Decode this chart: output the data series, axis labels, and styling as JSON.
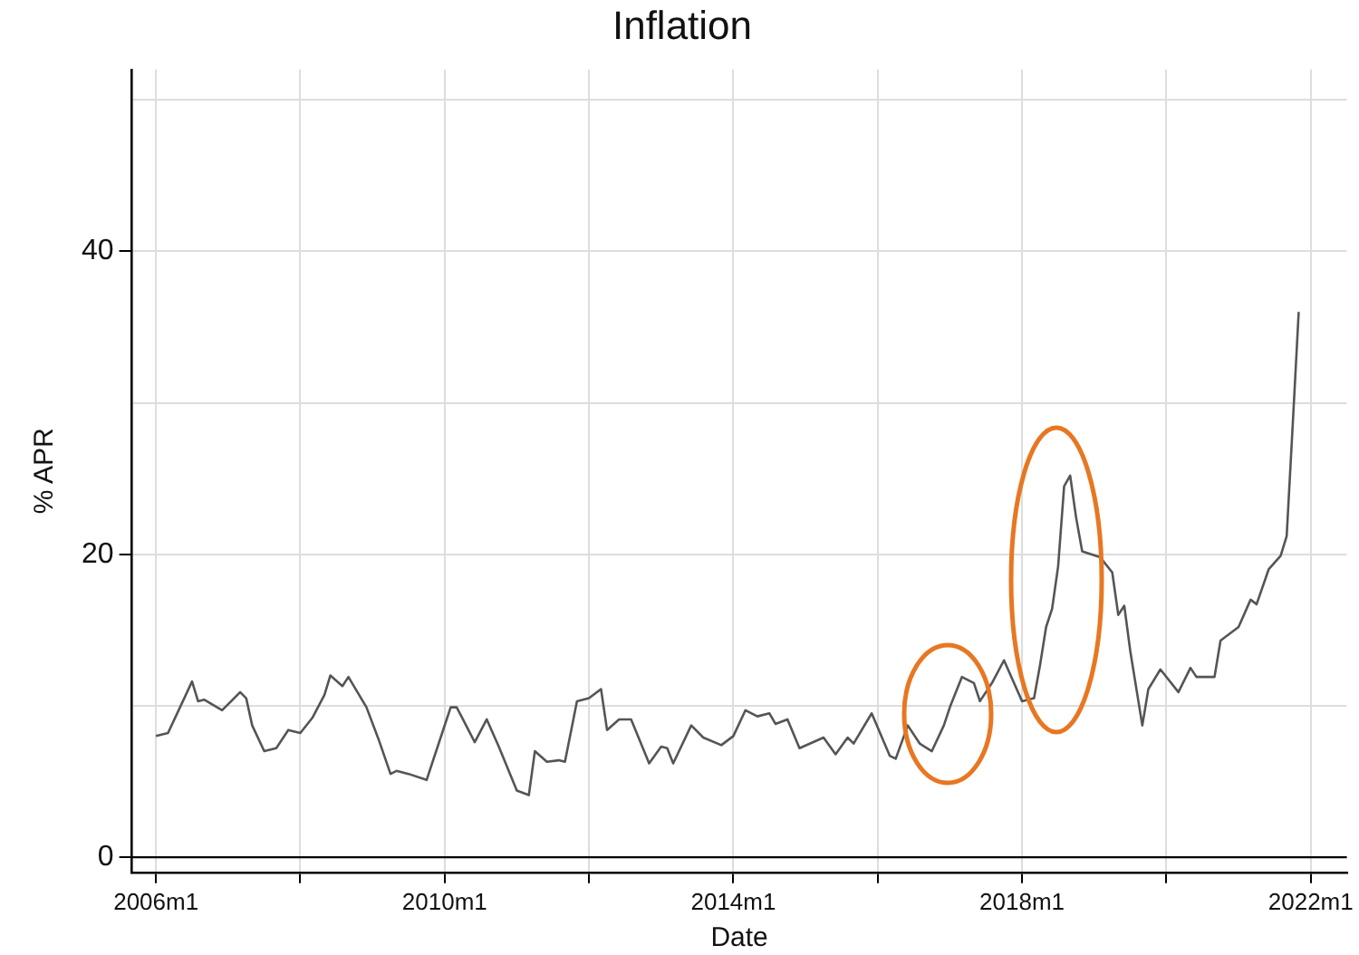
{
  "chart_data": {
    "type": "line",
    "title": "Inflation",
    "xlabel": "Date",
    "ylabel": "% APR",
    "xlim": [
      "2005-09",
      "2022-07"
    ],
    "ylim": [
      -1,
      52
    ],
    "xticks": [
      {
        "value": "2006-01",
        "label": "2006m1"
      },
      {
        "value": "2008-01",
        "label": null
      },
      {
        "value": "2010-01",
        "label": "2010m1"
      },
      {
        "value": "2012-01",
        "label": null
      },
      {
        "value": "2014-01",
        "label": "2014m1"
      },
      {
        "value": "2016-01",
        "label": null
      },
      {
        "value": "2018-01",
        "label": "2018m1"
      },
      {
        "value": "2020-01",
        "label": null
      },
      {
        "value": "2022-01",
        "label": "2022m1"
      }
    ],
    "yticks": [
      0,
      {
        "value": 10,
        "label": null
      },
      20,
      {
        "value": 30,
        "label": null
      },
      40,
      {
        "value": 50,
        "label": null
      }
    ],
    "grid": true,
    "legend": false,
    "marker": "none",
    "line_style": "solid",
    "ref_lines": [
      {
        "axis": "y",
        "value": 0,
        "label": null,
        "color": "#000000"
      }
    ],
    "x": [
      "2006-01",
      "2006-03",
      "2006-05",
      "2006-07",
      "2006-08",
      "2006-09",
      "2006-12",
      "2007-03",
      "2007-04",
      "2007-05",
      "2007-07",
      "2007-09",
      "2007-11",
      "2008-01",
      "2008-03",
      "2008-05",
      "2008-06",
      "2008-08",
      "2008-09",
      "2008-12",
      "2009-02",
      "2009-04",
      "2009-05",
      "2009-07",
      "2009-10",
      "2009-11",
      "2010-02",
      "2010-03",
      "2010-06",
      "2010-08",
      "2010-10",
      "2011-01",
      "2011-03",
      "2011-04",
      "2011-06",
      "2011-08",
      "2011-09",
      "2011-11",
      "2012-01",
      "2012-03",
      "2012-04",
      "2012-06",
      "2012-08",
      "2012-11",
      "2013-01",
      "2013-02",
      "2013-03",
      "2013-06",
      "2013-08",
      "2013-11",
      "2014-01",
      "2014-03",
      "2014-05",
      "2014-07",
      "2014-08",
      "2014-10",
      "2014-12",
      "2015-04",
      "2015-06",
      "2015-08",
      "2015-09",
      "2015-12",
      "2016-03",
      "2016-04",
      "2016-06",
      "2016-08",
      "2016-10",
      "2016-12",
      "2017-01",
      "2017-03",
      "2017-05",
      "2017-06",
      "2017-08",
      "2017-10",
      "2018-01",
      "2018-03",
      "2018-04",
      "2018-05",
      "2018-06",
      "2018-07",
      "2018-08",
      "2018-09",
      "2018-10",
      "2018-11",
      "2019-02",
      "2019-04",
      "2019-05",
      "2019-06",
      "2019-07",
      "2019-09",
      "2019-10",
      "2019-12",
      "2020-03",
      "2020-05",
      "2020-06",
      "2020-09",
      "2020-10",
      "2021-01",
      "2021-03",
      "2021-04",
      "2021-06",
      "2021-08",
      "2021-09",
      "2021-10",
      "2021-11"
    ],
    "series": [
      {
        "color": "#555555",
        "values": [
          8.0,
          8.2,
          9.9,
          11.6,
          10.3,
          10.4,
          9.7,
          10.9,
          10.5,
          8.7,
          7.0,
          7.2,
          8.4,
          8.2,
          9.2,
          10.7,
          12.0,
          11.3,
          11.9,
          9.9,
          7.8,
          5.5,
          5.7,
          5.5,
          5.1,
          6.3,
          9.9,
          9.9,
          7.6,
          9.1,
          7.3,
          4.4,
          4.1,
          7.0,
          6.3,
          6.4,
          6.3,
          10.3,
          10.5,
          11.1,
          8.4,
          9.1,
          9.1,
          6.2,
          7.3,
          7.2,
          6.2,
          8.7,
          7.9,
          7.4,
          8.0,
          9.7,
          9.3,
          9.5,
          8.8,
          9.1,
          7.2,
          7.9,
          6.8,
          7.9,
          7.5,
          9.5,
          6.7,
          6.5,
          8.7,
          7.5,
          7.0,
          8.7,
          9.9,
          11.9,
          11.5,
          10.3,
          11.5,
          13.0,
          10.3,
          10.5,
          12.7,
          15.2,
          16.4,
          19.2,
          24.5,
          25.2,
          22.4,
          20.2,
          19.8,
          18.8,
          16.0,
          16.6,
          13.6,
          8.7,
          11.1,
          12.4,
          10.9,
          12.5,
          11.9,
          11.9,
          14.3,
          15.2,
          17.0,
          16.7,
          19.0,
          19.9,
          21.2,
          28.5,
          36.0
        ]
      }
    ]
  }
}
